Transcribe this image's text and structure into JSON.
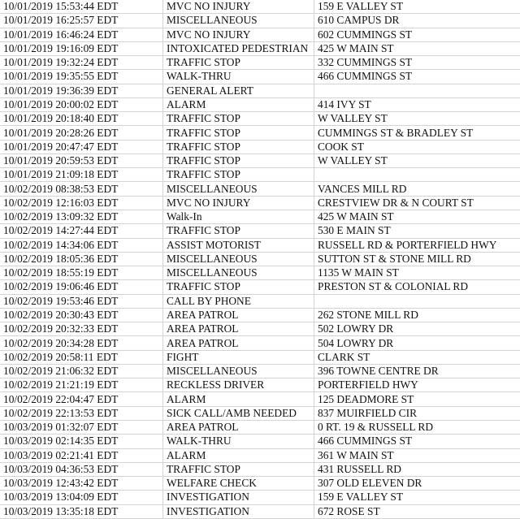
{
  "rows": [
    [
      "10/01/2019 15:53:44 EDT",
      "MVC NO INJURY",
      "159 E VALLEY ST"
    ],
    [
      "10/01/2019 16:25:57 EDT",
      "MISCELLANEOUS",
      "610 CAMPUS DR"
    ],
    [
      "10/01/2019 16:46:24 EDT",
      "MVC NO INJURY",
      "602 CUMMINGS ST"
    ],
    [
      "10/01/2019 19:16:09 EDT",
      "INTOXICATED PEDESTRIAN",
      "425 W MAIN ST"
    ],
    [
      "10/01/2019 19:32:24 EDT",
      "TRAFFIC STOP",
      "332 CUMMINGS ST"
    ],
    [
      "10/01/2019 19:35:55 EDT",
      "WALK-THRU",
      "466 CUMMINGS ST"
    ],
    [
      "10/01/2019 19:36:39 EDT",
      "GENERAL ALERT",
      ""
    ],
    [
      "10/01/2019 20:00:02 EDT",
      "ALARM",
      "414 IVY ST"
    ],
    [
      "10/01/2019 20:18:40 EDT",
      "TRAFFIC STOP",
      "W VALLEY ST"
    ],
    [
      "10/01/2019 20:28:26 EDT",
      "TRAFFIC STOP",
      "CUMMINGS ST & BRADLEY ST"
    ],
    [
      "10/01/2019 20:47:47 EDT",
      "TRAFFIC STOP",
      "COOK ST"
    ],
    [
      "10/01/2019 20:59:53 EDT",
      "TRAFFIC STOP",
      "W VALLEY ST"
    ],
    [
      "10/01/2019 21:09:18 EDT",
      "TRAFFIC STOP",
      ""
    ],
    [
      "10/02/2019 08:38:53 EDT",
      "MISCELLANEOUS",
      "VANCES MILL RD"
    ],
    [
      "10/02/2019 12:16:03 EDT",
      "MVC NO INJURY",
      "CRESTVIEW DR & N COURT ST"
    ],
    [
      "10/02/2019 13:09:32 EDT",
      "Walk-In",
      "425 W MAIN ST"
    ],
    [
      "10/02/2019 14:27:44 EDT",
      "TRAFFIC STOP",
      "530 E MAIN ST"
    ],
    [
      "10/02/2019 14:34:06 EDT",
      "ASSIST MOTORIST",
      "RUSSELL RD & PORTERFIELD HWY"
    ],
    [
      "10/02/2019 18:05:36 EDT",
      "MISCELLANEOUS",
      "SUTTON ST & STONE MILL RD"
    ],
    [
      "10/02/2019 18:55:19 EDT",
      "MISCELLANEOUS",
      "1135 W MAIN ST"
    ],
    [
      "10/02/2019 19:06:46 EDT",
      "TRAFFIC STOP",
      "PRESTON ST & COLONIAL RD"
    ],
    [
      "10/02/2019 19:53:46 EDT",
      "CALL BY PHONE",
      ""
    ],
    [
      "10/02/2019 20:30:43 EDT",
      "AREA PATROL",
      "262 STONE MILL RD"
    ],
    [
      "10/02/2019 20:32:33 EDT",
      "AREA PATROL",
      "502 LOWRY DR"
    ],
    [
      "10/02/2019 20:34:28 EDT",
      "AREA PATROL",
      "504 LOWRY DR"
    ],
    [
      "10/02/2019 20:58:11 EDT",
      "FIGHT",
      "CLARK ST"
    ],
    [
      "10/02/2019 21:06:32 EDT",
      "MISCELLANEOUS",
      "396 TOWNE CENTRE DR"
    ],
    [
      "10/02/2019 21:21:19 EDT",
      "RECKLESS DRIVER",
      "PORTERFIELD HWY"
    ],
    [
      "10/02/2019 22:04:47 EDT",
      "ALARM",
      "125 DEADMORE ST"
    ],
    [
      "10/02/2019 22:13:53 EDT",
      "SICK CALL/AMB NEEDED",
      "837 MUIRFIELD CIR"
    ],
    [
      "10/03/2019 01:32:07 EDT",
      "AREA PATROL",
      "0 RT. 19 & RUSSELL RD"
    ],
    [
      "10/03/2019 02:14:35 EDT",
      "WALK-THRU",
      "466 CUMMINGS ST"
    ],
    [
      "10/03/2019 02:21:41 EDT",
      "ALARM",
      "361 W MAIN ST"
    ],
    [
      "10/03/2019 04:36:53 EDT",
      "TRAFFIC STOP",
      "431 RUSSELL RD"
    ],
    [
      "10/03/2019 12:43:42 EDT",
      "WELFARE CHECK",
      "307 OLD ELEVEN DR"
    ],
    [
      "10/03/2019 13:04:09 EDT",
      "INVESTIGATION",
      "159 E VALLEY ST"
    ],
    [
      "10/03/2019 13:35:18 EDT",
      "INVESTIGATION",
      "672 ROSE ST"
    ]
  ]
}
